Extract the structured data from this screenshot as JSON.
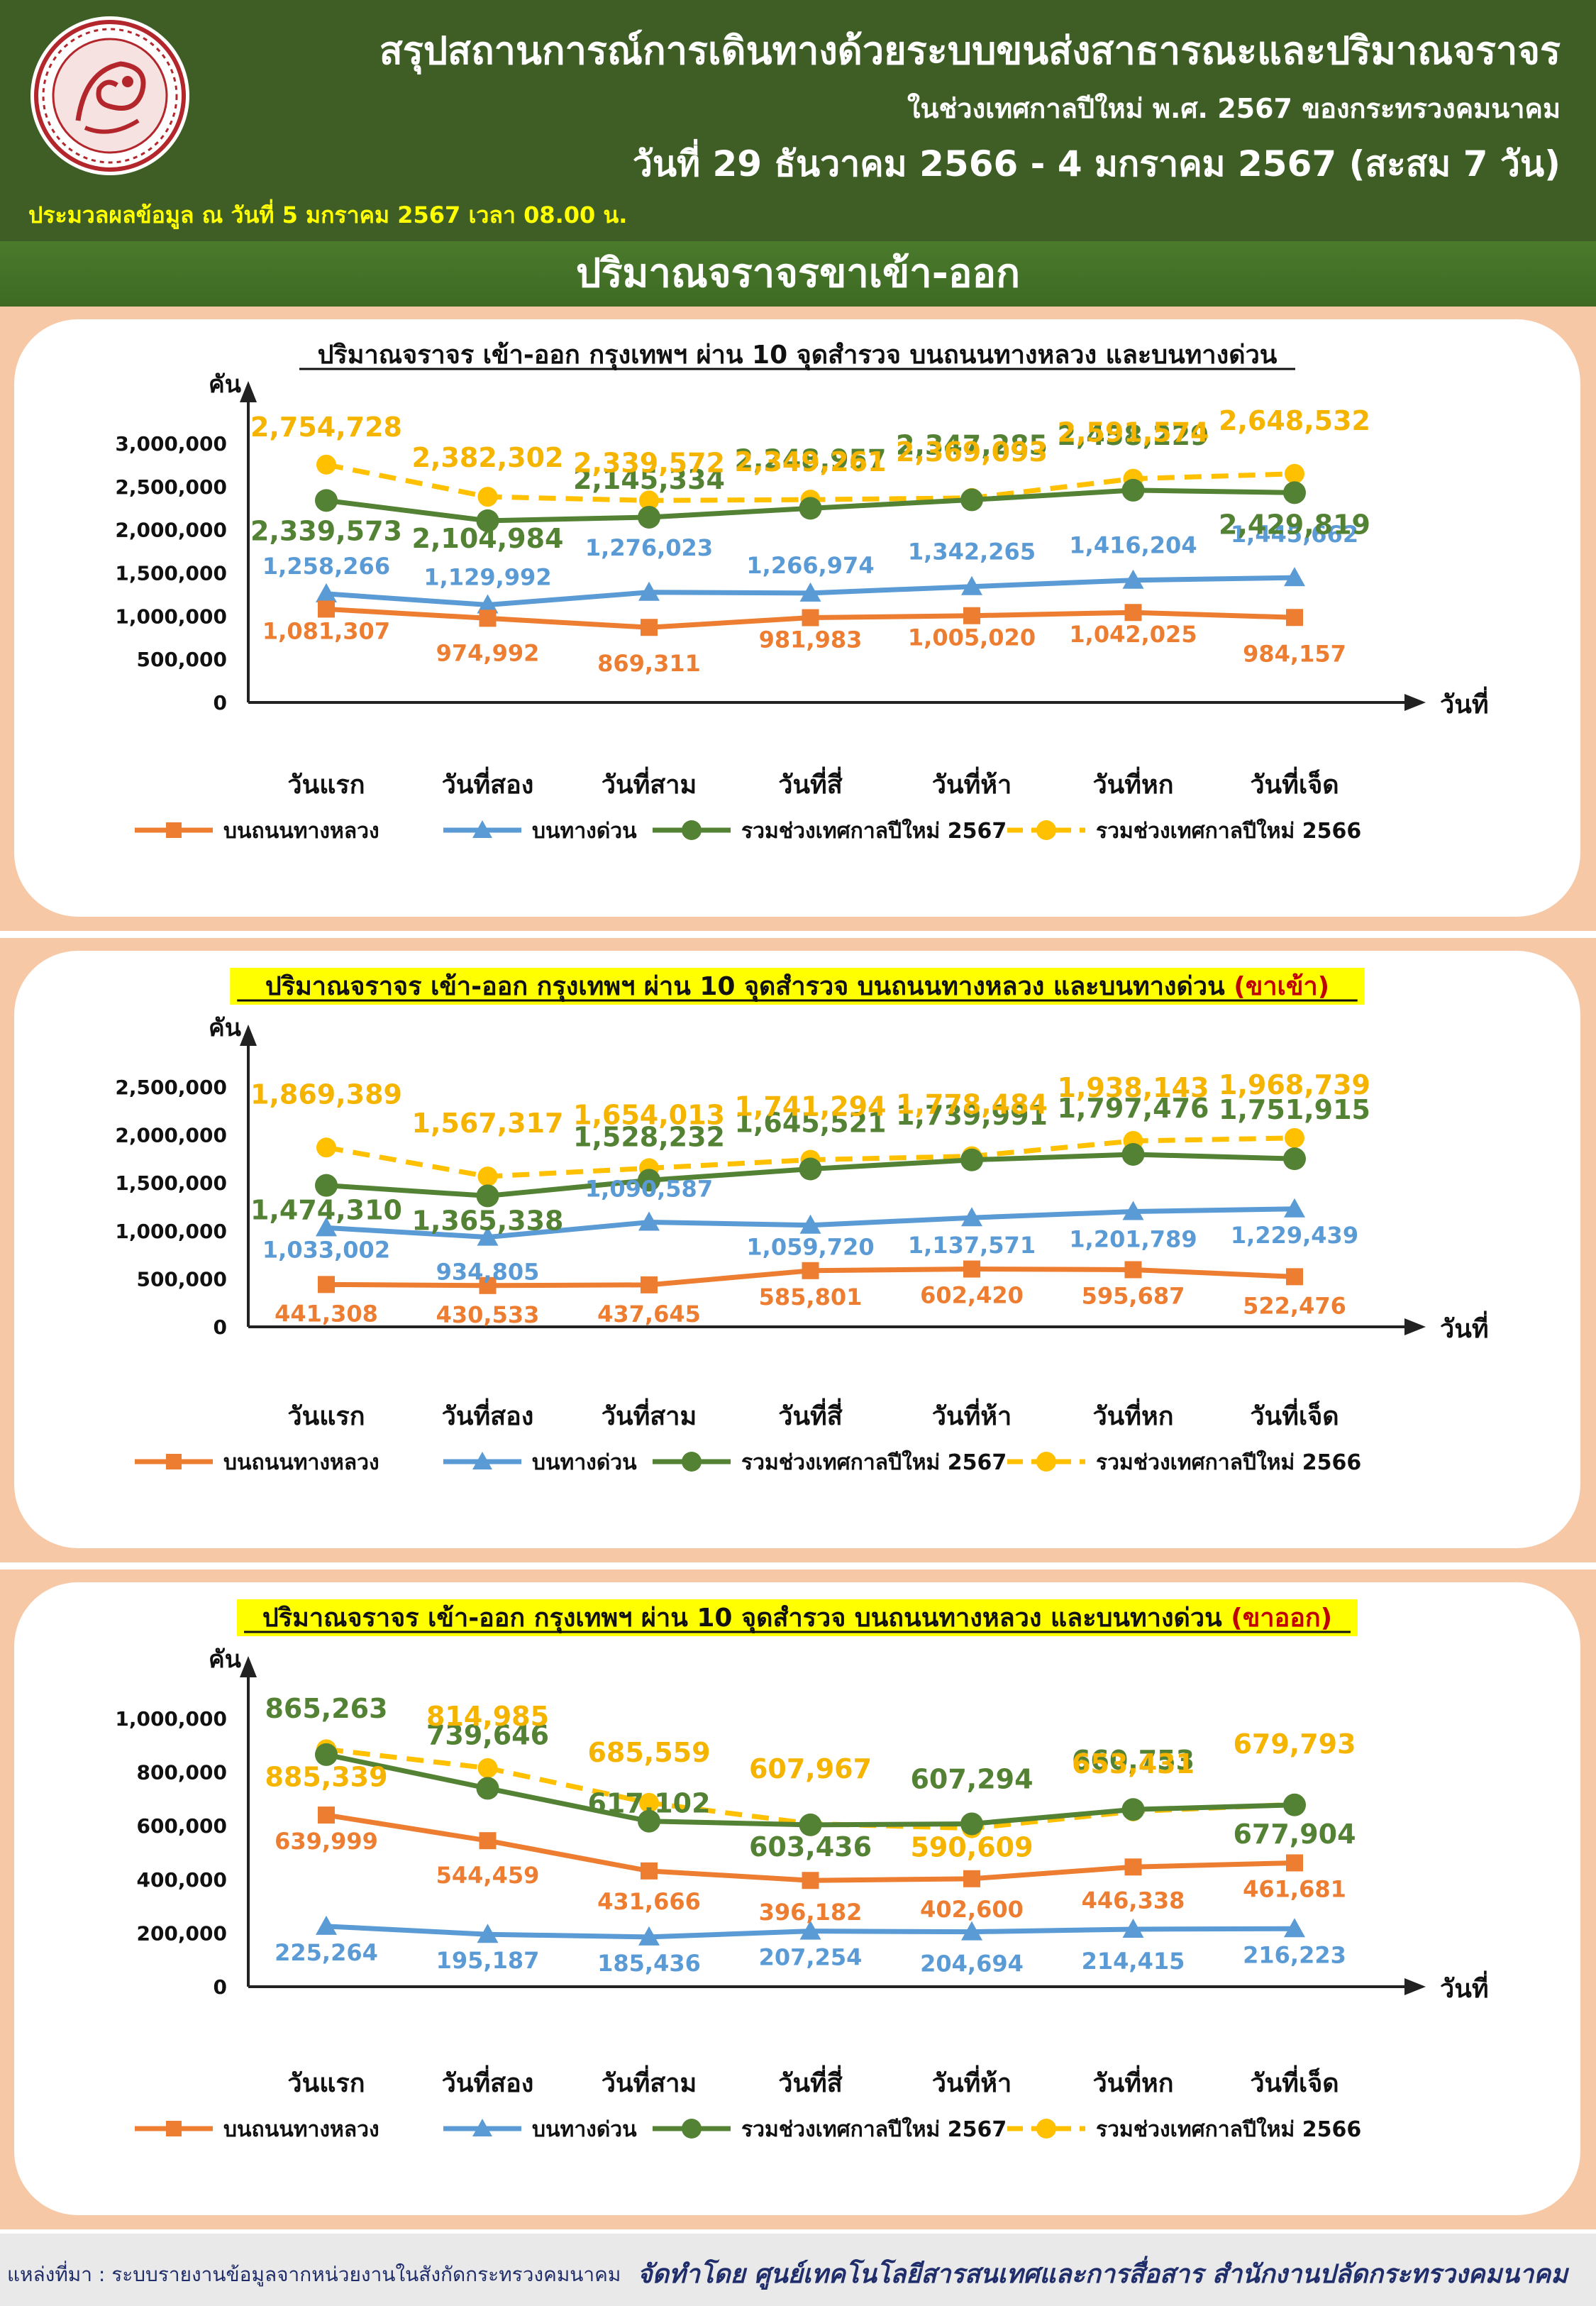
{
  "header": {
    "title": "สรุปสถานการณ์การเดินทางด้วยระบบขนส่งสาธารณะและปริมาณจราจร",
    "subtitle": "ในช่วงเทศกาลปีใหม่ พ.ศ. 2567 ของกระทรวงคมนาคม",
    "date_range": "วันที่ 29 ธันวาคม 2566 - 4 มกราคม 2567 (สะสม 7 วัน)",
    "processed": "ประมวลผลข้อมูล ณ วันที่ 5 มกราคม 2567 เวลา 08.00 น."
  },
  "section_title": "ปริมาณจราจรขาเข้า-ออก",
  "footer": {
    "source": "แหล่งที่มา : ระบบรายงานข้อมูลจากหน่วยงานในสังกัดกระทรวงคมนาคม",
    "prepared_by": "จัดทำโดย ศูนย์เทคโนโลยีสารสนเทศและการสื่อสาร สำนักงานปลัดกระทรวงคมนาคม"
  },
  "colors": {
    "header_bg": "#3e5e26",
    "panel_bg": "#f6c8a6",
    "highway": "#ed7d31",
    "expressway": "#5b9bd5",
    "total_2567": "#548235",
    "total_2566": "#ffc000",
    "emphasis_red": "#c00000",
    "highlight": "#ffff00"
  },
  "chart_data": [
    {
      "type": "line",
      "title": "ปริมาณจราจร เข้า-ออก กรุงเทพฯ ผ่าน 10 จุดสำรวจ บนถนนทางหลวง และบนทางด่วน",
      "title_suffix": "",
      "title_highlight": false,
      "ylabel": "คัน",
      "xlabel": "วันที่",
      "categories": [
        "วันแรก",
        "วันที่สอง",
        "วันที่สาม",
        "วันที่สี่",
        "วันที่ห้า",
        "วันที่หก",
        "วันที่เจ็ด"
      ],
      "ylim": [
        0,
        3000000
      ],
      "yticks": [
        "0",
        "500,000",
        "1,000,000",
        "1,500,000",
        "2,000,000",
        "2,500,000",
        "3,000,000"
      ],
      "grid": false,
      "legend_position": "bottom",
      "series": [
        {
          "name": "บนถนนทางหลวง",
          "values": [
            1081307,
            974992,
            869311,
            981983,
            1005020,
            1042025,
            984157
          ],
          "labels": [
            "1,081,307",
            "974,992",
            "869,311",
            "981,983",
            "1,005,020",
            "1,042,025",
            "984,157"
          ]
        },
        {
          "name": "บนทางด่วน",
          "values": [
            1258266,
            1129992,
            1276023,
            1266974,
            1342265,
            1416204,
            1445662
          ],
          "labels": [
            "1,258,266",
            "1,129,992",
            "1,276,023",
            "1,266,974",
            "1,342,265",
            "1,416,204",
            "1,445,662"
          ]
        },
        {
          "name": "รวมช่วงเทศกาลปีใหม่ 2567",
          "values": [
            2339573,
            2104984,
            2145334,
            2248957,
            2347285,
            2458229,
            2429819
          ],
          "labels": [
            "2,339,573",
            "2,104,984",
            "2,145,334",
            "2,248,957",
            "2,347,285",
            "2,458,229",
            "2,429,819"
          ]
        },
        {
          "name": "รวมช่วงเทศกาลปีใหม่ 2566",
          "values": [
            2754728,
            2382302,
            2339572,
            2349261,
            2369093,
            2591574,
            2648532
          ],
          "labels": [
            "2,754,728",
            "2,382,302",
            "2,339,572",
            "2,349,261",
            "2,369,093",
            "2,591,574",
            "2,648,532"
          ]
        }
      ]
    },
    {
      "type": "line",
      "title": "ปริมาณจราจร เข้า-ออก กรุงเทพฯ ผ่าน 10 จุดสำรวจ บนถนนทางหลวง และบนทางด่วน",
      "title_suffix": "(ขาเข้า)",
      "title_highlight": true,
      "ylabel": "คัน",
      "xlabel": "วันที่",
      "categories": [
        "วันแรก",
        "วันที่สอง",
        "วันที่สาม",
        "วันที่สี่",
        "วันที่ห้า",
        "วันที่หก",
        "วันที่เจ็ด"
      ],
      "ylim": [
        0,
        2500000
      ],
      "yticks": [
        "0",
        "500,000",
        "1,000,000",
        "1,500,000",
        "2,000,000",
        "2,500,000"
      ],
      "grid": false,
      "legend_position": "bottom",
      "series": [
        {
          "name": "บนถนนทางหลวง",
          "values": [
            441308,
            430533,
            437645,
            585801,
            602420,
            595687,
            522476
          ],
          "labels": [
            "441,308",
            "430,533",
            "437,645",
            "585,801",
            "602,420",
            "595,687",
            "522,476"
          ]
        },
        {
          "name": "บนทางด่วน",
          "values": [
            1033002,
            934805,
            1090587,
            1059720,
            1137571,
            1201789,
            1229439
          ],
          "labels": [
            "1,033,002",
            "934,805",
            "1,090,587",
            "1,059,720",
            "1,137,571",
            "1,201,789",
            "1,229,439"
          ]
        },
        {
          "name": "รวมช่วงเทศกาลปีใหม่ 2567",
          "values": [
            1474310,
            1365338,
            1528232,
            1645521,
            1739991,
            1797476,
            1751915
          ],
          "labels": [
            "1,474,310",
            "1,365,338",
            "1,528,232",
            "1,645,521",
            "1,739,991",
            "1,797,476",
            "1,751,915"
          ]
        },
        {
          "name": "รวมช่วงเทศกาลปีใหม่ 2566",
          "values": [
            1869389,
            1567317,
            1654013,
            1741294,
            1778484,
            1938143,
            1968739
          ],
          "labels": [
            "1,869,389",
            "1,567,317",
            "1,654,013",
            "1,741,294",
            "1,778,484",
            "1,938,143",
            "1,968,739"
          ]
        }
      ]
    },
    {
      "type": "line",
      "title": "ปริมาณจราจร เข้า-ออก กรุงเทพฯ ผ่าน 10 จุดสำรวจ บนถนนทางหลวง และบนทางด่วน",
      "title_suffix": "(ขาออก)",
      "title_highlight": true,
      "ylabel": "คัน",
      "xlabel": "วันที่",
      "categories": [
        "วันแรก",
        "วันที่สอง",
        "วันที่สาม",
        "วันที่สี่",
        "วันที่ห้า",
        "วันที่หก",
        "วันที่เจ็ด"
      ],
      "ylim": [
        0,
        1000000
      ],
      "yticks": [
        "0",
        "200,000",
        "400,000",
        "600,000",
        "800,000",
        "1,000,000"
      ],
      "grid": false,
      "legend_position": "bottom",
      "series": [
        {
          "name": "บนถนนทางหลวง",
          "values": [
            639999,
            544459,
            431666,
            396182,
            402600,
            446338,
            461681
          ],
          "labels": [
            "639,999",
            "544,459",
            "431,666",
            "396,182",
            "402,600",
            "446,338",
            "461,681"
          ]
        },
        {
          "name": "บนทางด่วน",
          "values": [
            225264,
            195187,
            185436,
            207254,
            204694,
            214415,
            216223
          ],
          "labels": [
            "225,264",
            "195,187",
            "185,436",
            "207,254",
            "204,694",
            "214,415",
            "216,223"
          ]
        },
        {
          "name": "รวมช่วงเทศกาลปีใหม่ 2567",
          "values": [
            865263,
            739646,
            617102,
            603436,
            607294,
            660753,
            677904
          ],
          "labels": [
            "865,263",
            "739,646",
            "617,102",
            "603,436",
            "607,294",
            "660,753",
            "677,904"
          ]
        },
        {
          "name": "รวมช่วงเทศกาลปีใหม่ 2566",
          "values": [
            885339,
            814985,
            685559,
            607967,
            590609,
            653431,
            679793
          ],
          "labels": [
            "885,339",
            "814,985",
            "685,559",
            "607,967",
            "590,609",
            "653,431",
            "679,793"
          ]
        }
      ]
    }
  ]
}
